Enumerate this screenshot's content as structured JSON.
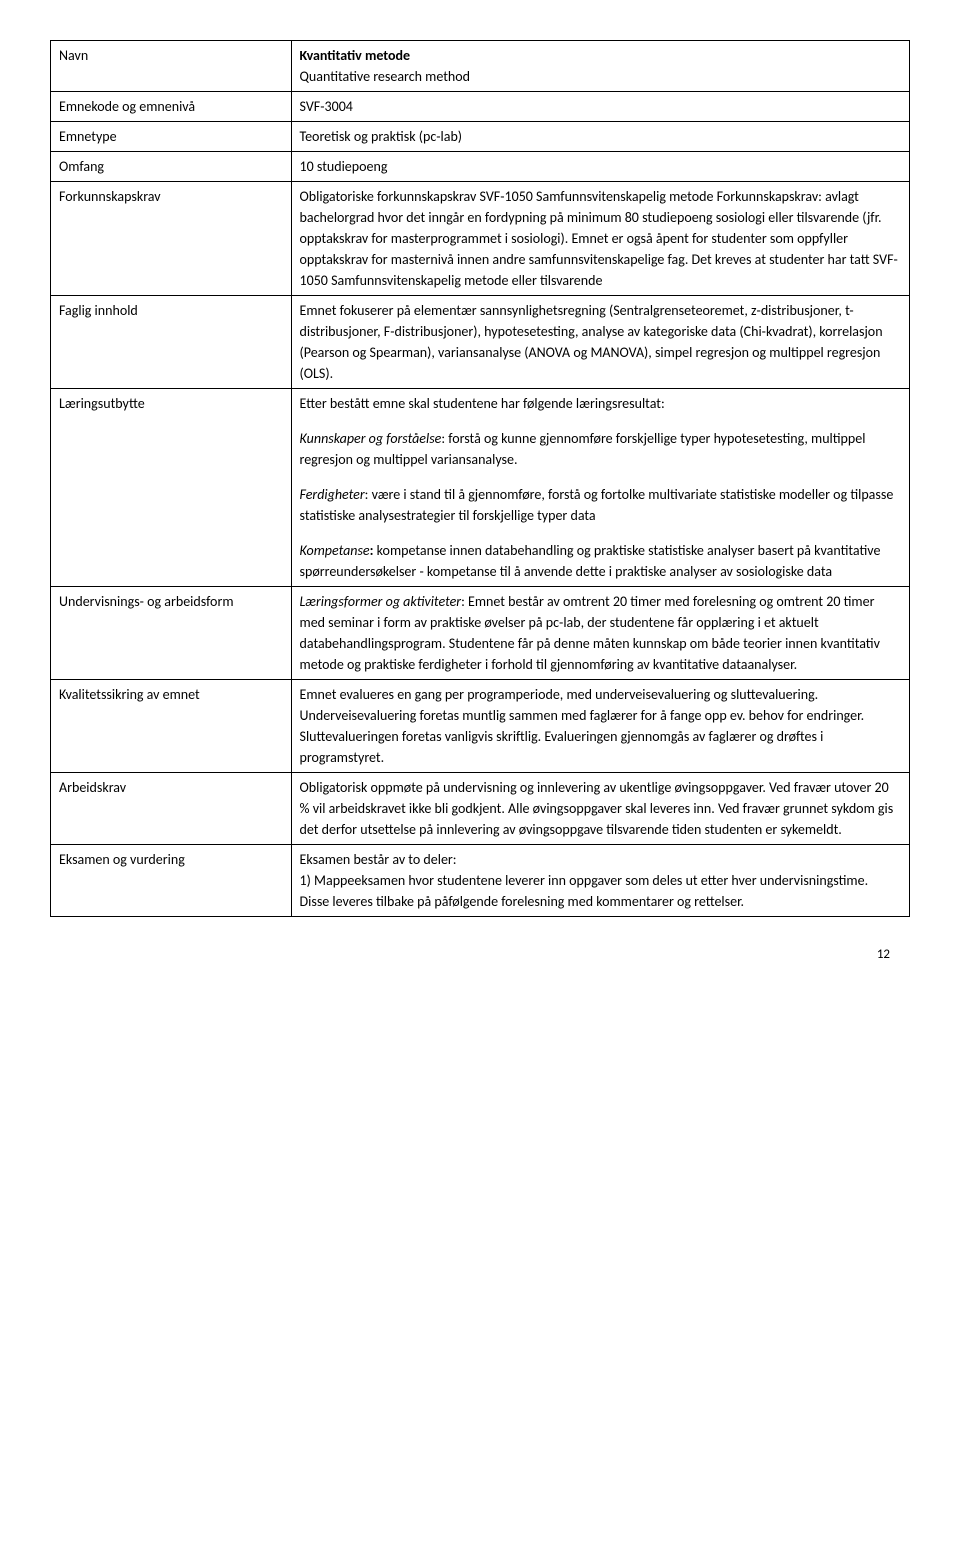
{
  "rows": {
    "r0": {
      "label": "Navn",
      "title": "Kvantitativ metode",
      "subtitle": "Quantitative research method"
    },
    "r1": {
      "label": "Emnekode og emnenivå",
      "value": "SVF-3004"
    },
    "r2": {
      "label": "Emnetype",
      "value": "Teoretisk og praktisk (pc-lab)"
    },
    "r3": {
      "label": "Omfang",
      "value": "10 studiepoeng"
    },
    "r4": {
      "label": "Forkunnskapskrav",
      "value": "Obligatoriske forkunnskapskrav SVF-1050 Samfunnsvitenskapelig metode Forkunnskapskrav: avlagt bachelorgrad hvor det inngår en fordypning på minimum 80 studiepoeng sosiologi eller tilsvarende (jfr. opptakskrav for masterprogrammet i sosiologi). Emnet er også åpent for studenter som oppfyller opptakskrav for masternivå innen andre samfunnsvitenskapelige fag. Det kreves at studenter har tatt SVF-1050 Samfunnsvitenskapelig metode eller tilsvarende"
    },
    "r5": {
      "label": "Faglig innhold",
      "value": "Emnet fokuserer på elementær sannsynlighetsregning (Sentralgrenseteoremet, z-distribusjoner, t-distribusjoner, F-distribusjoner), hypotesetesting, analyse av kategoriske data (Chi-kvadrat), korrelasjon (Pearson og Spearman), variansanalyse (ANOVA og MANOVA), simpel regresjon og multippel regresjon (OLS)."
    },
    "r6": {
      "label": "Læringsutbytte",
      "intro": "Etter bestått emne skal studentene har følgende læringsresultat:",
      "p1_label": "Kunnskaper og forståelse",
      "p1_text": ": forstå og kunne gjennomføre forskjellige typer hypotesetesting, multippel regresjon og multippel variansanalyse.",
      "p2_label": "Ferdigheter",
      "p2_text": ": være i stand til å gjennomføre, forstå og fortolke multivariate statistiske modeller og tilpasse statistiske analysestrategier til forskjellige typer data",
      "p3_label": "Kompetanse",
      "p3_text": " kompetanse innen databehandling og praktiske statistiske analyser basert på kvantitative spørreundersøkelser - kompetanse til å anvende dette i praktiske analyser av sosiologiske data"
    },
    "r7": {
      "label": "Undervisnings- og arbeidsform",
      "prefix": "Læringsformer og aktiviteter",
      "value": ": Emnet består av omtrent 20 timer med forelesning og omtrent 20 timer med seminar i form av praktiske øvelser på pc-lab, der studentene får opplæring i et aktuelt databehandlingsprogram. Studentene får på denne måten kunnskap om både teorier innen kvantitativ metode og praktiske ferdigheter i forhold til gjennomføring av kvantitative dataanalyser."
    },
    "r8": {
      "label": "Kvalitetssikring av emnet",
      "value": "Emnet evalueres en gang per programperiode, med underveisevaluering og sluttevaluering. Underveisevaluering foretas muntlig sammen med faglærer for å fange opp ev. behov for endringer. Sluttevalueringen foretas vanligvis skriftlig. Evalueringen gjennomgås av faglærer og drøftes i programstyret."
    },
    "r9": {
      "label": "Arbeidskrav",
      "value": "Obligatorisk oppmøte på undervisning og innlevering av ukentlige øvingsoppgaver. Ved fravær utover 20 % vil arbeidskravet ikke bli godkjent. Alle øvingsoppgaver skal leveres inn. Ved fravær grunnet sykdom gis det derfor utsettelse på innlevering av øvingsoppgave tilsvarende tiden studenten er sykemeldt."
    },
    "r10": {
      "label": "Eksamen og vurdering",
      "line1": "Eksamen består av to deler:",
      "line2": "1) Mappeeksamen hvor studentene leverer inn oppgaver som deles ut etter hver undervisningstime. Disse leveres tilbake på påfølgende forelesning med kommentarer og rettelser."
    }
  },
  "pageNumber": "12"
}
